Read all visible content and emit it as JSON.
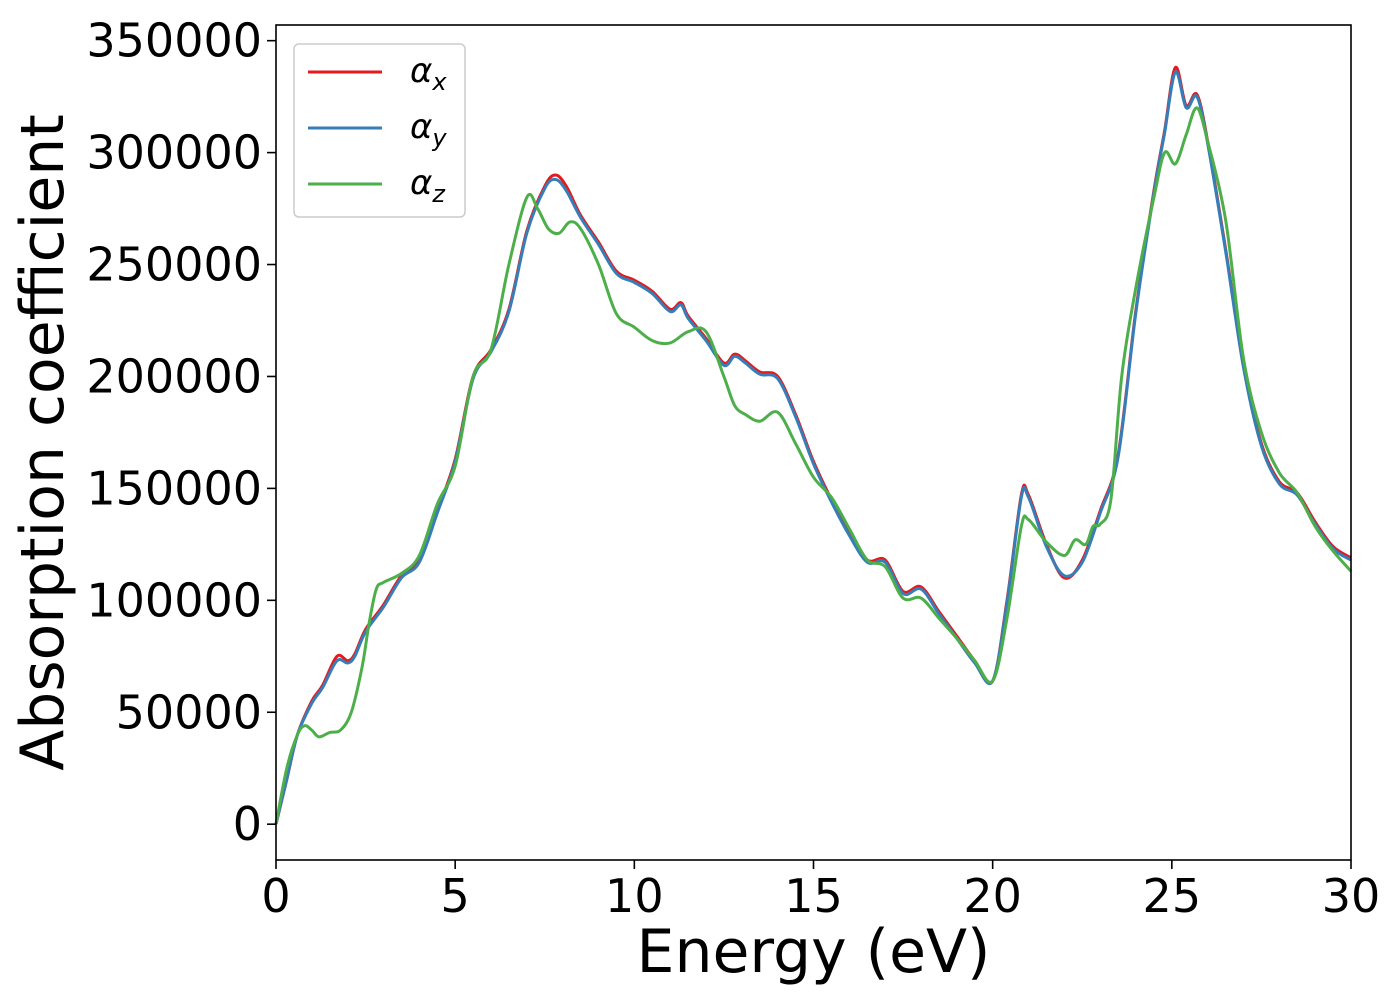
{
  "chart_data": {
    "type": "line",
    "xlabel": "Energy (eV)",
    "ylabel": "Absorption coefficient",
    "xlim": [
      0,
      30
    ],
    "ylim": [
      -16000,
      357000
    ],
    "x_ticks": [
      "0",
      "5",
      "10",
      "15",
      "20",
      "25",
      "30"
    ],
    "y_ticks": [
      "0",
      "50000",
      "100000",
      "150000",
      "200000",
      "250000",
      "300000",
      "350000"
    ],
    "grid": false,
    "legend_position": "top-left",
    "legend": [
      {
        "symbol": "α",
        "sub": "x"
      },
      {
        "symbol": "α",
        "sub": "y"
      },
      {
        "symbol": "α",
        "sub": "z"
      }
    ],
    "series": [
      {
        "name": "αx",
        "color": "#e41a1c",
        "x": [
          0,
          0.3,
          0.6,
          1.0,
          1.3,
          1.7,
          2.0,
          2.2,
          2.5,
          3.0,
          3.5,
          4.0,
          4.5,
          5.0,
          5.5,
          6.0,
          6.5,
          7.0,
          7.5,
          7.8,
          8.1,
          8.5,
          9.0,
          9.5,
          10.0,
          10.5,
          11.0,
          11.3,
          11.5,
          12.0,
          12.5,
          12.8,
          13.1,
          13.5,
          14.0,
          14.5,
          15.0,
          15.5,
          16.0,
          16.5,
          17.0,
          17.5,
          18.0,
          18.5,
          19.0,
          19.5,
          20.0,
          20.4,
          20.8,
          21.0,
          21.5,
          22.0,
          22.5,
          23.0,
          23.5,
          24.0,
          24.5,
          24.8,
          25.1,
          25.4,
          25.7,
          26.0,
          26.5,
          27.0,
          27.5,
          28.0,
          28.5,
          29.0,
          29.5,
          30.0
        ],
        "values": [
          0,
          20000,
          40000,
          55000,
          62000,
          75000,
          73000,
          76000,
          87000,
          98000,
          111000,
          118000,
          140000,
          163000,
          200000,
          212000,
          230000,
          265000,
          285000,
          290000,
          285000,
          272000,
          260000,
          247000,
          243000,
          238000,
          230000,
          233000,
          227000,
          217000,
          206000,
          210000,
          207000,
          202000,
          200000,
          183000,
          162000,
          145000,
          130000,
          118000,
          118000,
          104000,
          106000,
          95000,
          84000,
          73000,
          64000,
          100000,
          147000,
          147000,
          125000,
          110000,
          118000,
          140000,
          165000,
          230000,
          283000,
          310000,
          338000,
          321000,
          326000,
          305000,
          257000,
          205000,
          170000,
          153000,
          148000,
          135000,
          124000,
          119000
        ]
      },
      {
        "name": "αy",
        "color": "#377eb8",
        "x": [
          0,
          0.3,
          0.6,
          1.0,
          1.3,
          1.7,
          2.0,
          2.2,
          2.5,
          3.0,
          3.5,
          4.0,
          4.5,
          5.0,
          5.5,
          6.0,
          6.5,
          7.0,
          7.5,
          7.8,
          8.1,
          8.5,
          9.0,
          9.5,
          10.0,
          10.5,
          11.0,
          11.3,
          11.5,
          12.0,
          12.5,
          12.8,
          13.1,
          13.5,
          14.0,
          14.5,
          15.0,
          15.5,
          16.0,
          16.5,
          17.0,
          17.5,
          18.0,
          18.5,
          19.0,
          19.5,
          20.0,
          20.4,
          20.8,
          21.0,
          21.5,
          22.0,
          22.5,
          23.0,
          23.5,
          24.0,
          24.5,
          24.8,
          25.1,
          25.4,
          25.7,
          26.0,
          26.5,
          27.0,
          27.5,
          28.0,
          28.5,
          29.0,
          29.5,
          30.0
        ],
        "values": [
          0,
          20000,
          40000,
          54000,
          61000,
          73000,
          72000,
          75000,
          86000,
          97000,
          110000,
          117000,
          139000,
          162000,
          199000,
          211000,
          229000,
          264000,
          284000,
          288000,
          283000,
          271000,
          259000,
          246000,
          242000,
          237000,
          229000,
          232000,
          226000,
          216000,
          205000,
          209000,
          206000,
          201000,
          199000,
          182000,
          161000,
          144000,
          129000,
          117000,
          117000,
          103000,
          105000,
          94000,
          83000,
          72000,
          64000,
          99000,
          146000,
          146000,
          124000,
          111000,
          117000,
          139000,
          164000,
          229000,
          282000,
          309000,
          336000,
          320000,
          325000,
          304000,
          256000,
          204000,
          169000,
          152000,
          147000,
          134000,
          123000,
          118000
        ]
      },
      {
        "name": "αz",
        "color": "#4daf4a",
        "x": [
          0,
          0.3,
          0.6,
          0.8,
          1.0,
          1.2,
          1.5,
          1.8,
          2.1,
          2.4,
          2.6,
          2.8,
          3.0,
          3.5,
          4.0,
          4.5,
          5.0,
          5.5,
          6.0,
          6.5,
          7.0,
          7.3,
          7.6,
          7.9,
          8.2,
          8.5,
          9.0,
          9.5,
          10.0,
          10.5,
          11.0,
          11.5,
          12.0,
          12.5,
          12.8,
          13.1,
          13.5,
          14.0,
          14.5,
          15.0,
          15.5,
          16.0,
          16.5,
          17.0,
          17.5,
          18.0,
          18.5,
          19.0,
          19.5,
          20.0,
          20.4,
          20.8,
          21.0,
          21.5,
          22.0,
          22.3,
          22.6,
          22.8,
          23.0,
          23.3,
          23.6,
          24.0,
          24.5,
          24.8,
          25.1,
          25.4,
          25.7,
          26.0,
          26.5,
          27.0,
          27.5,
          28.0,
          28.5,
          29.0,
          29.5,
          30.0
        ],
        "values": [
          0,
          25000,
          40000,
          44000,
          42000,
          39000,
          41000,
          42000,
          50000,
          70000,
          90000,
          105000,
          108000,
          112000,
          120000,
          143000,
          160000,
          200000,
          212000,
          250000,
          280000,
          275000,
          266000,
          264000,
          269000,
          266000,
          250000,
          228000,
          222000,
          216000,
          215000,
          220000,
          220000,
          200000,
          187000,
          183000,
          180000,
          184000,
          170000,
          155000,
          146000,
          132000,
          118000,
          115000,
          101000,
          101000,
          92000,
          83000,
          73000,
          64000,
          92000,
          133000,
          136000,
          126000,
          120000,
          127000,
          125000,
          133000,
          134000,
          145000,
          200000,
          240000,
          280000,
          300000,
          295000,
          308000,
          320000,
          305000,
          270000,
          208000,
          175000,
          157000,
          148000,
          133000,
          122000,
          113000
        ]
      }
    ]
  }
}
